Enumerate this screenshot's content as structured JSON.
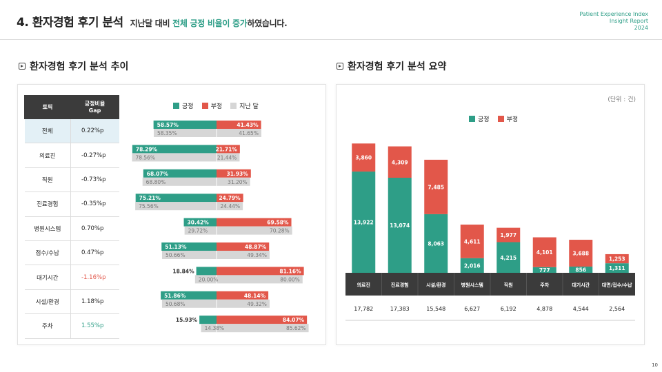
{
  "header": {
    "title": "4. 환자경험 후기 분석",
    "subtitle_pre": "지난달 대비",
    "subtitle_hl": "전체 긍정 비율이 증가",
    "subtitle_post": "하였습니다.",
    "brand_line1": "Patient Experience Index",
    "brand_line2": "Insight Report",
    "brand_line3": "2024"
  },
  "page_number": "10",
  "colors": {
    "positive": "#2e9e87",
    "negative": "#e2574a",
    "last_month": "#d6d6d6",
    "text": "#222222"
  },
  "left": {
    "section_title": "환자경험 후기 분석 추이",
    "table_header_topic": "토픽",
    "table_header_gap": "긍정비율 Gap",
    "legend": {
      "positive": "긍정",
      "negative": "부정",
      "last_month": "지난 달"
    }
  },
  "right": {
    "section_title": "환자경험 후기 분석 요약",
    "unit": "(단위 : 건)",
    "legend": {
      "positive": "긍정",
      "negative": "부정"
    }
  },
  "chart_data": [
    {
      "type": "bar",
      "orientation": "horizontal-diverging",
      "categories": [
        "전체",
        "의료진",
        "직원",
        "진료경험",
        "병원시스템",
        "접수/수납",
        "대기시간",
        "시설/환경",
        "주차"
      ],
      "gap": [
        "0.22%p",
        "-0.27%p",
        "-0.73%p",
        "-0.35%p",
        "0.70%p",
        "0.47%p",
        "-1.16%p",
        "1.18%p",
        "1.55%p"
      ],
      "series": [
        {
          "name": "긍정",
          "labels": [
            "58.57%",
            "78.29%",
            "68.07%",
            "75.21%",
            "30.42%",
            "51.13%",
            "18.84%",
            "51.86%",
            "15.93%"
          ],
          "values": [
            58.57,
            78.29,
            68.07,
            75.21,
            30.42,
            51.13,
            18.84,
            51.86,
            15.93
          ]
        },
        {
          "name": "부정",
          "labels": [
            "41.43%",
            "21.71%",
            "31.93%",
            "24.79%",
            "69.58%",
            "48.87%",
            "81.16%",
            "48.14%",
            "84.07%"
          ],
          "values": [
            41.43,
            21.71,
            31.93,
            24.79,
            69.58,
            48.87,
            81.16,
            48.14,
            84.07
          ]
        },
        {
          "name": "지난 달 긍정",
          "labels": [
            "58.35%",
            "78.56%",
            "68.80%",
            "75.56%",
            "29.72%",
            "50.66%",
            "20.00%",
            "50.68%",
            "14.38%"
          ],
          "values": [
            58.35,
            78.56,
            68.8,
            75.56,
            29.72,
            50.66,
            20.0,
            50.68,
            14.38
          ]
        },
        {
          "name": "지난 달 부정",
          "labels": [
            "41.65%",
            "21.44%",
            "31.20%",
            "24.44%",
            "70.28%",
            "49.34%",
            "80.00%",
            "49.32%",
            "85.62%"
          ],
          "values": [
            41.65,
            21.44,
            31.2,
            24.44,
            70.28,
            49.34,
            80.0,
            49.32,
            85.62
          ]
        }
      ]
    },
    {
      "type": "bar",
      "stacked": true,
      "categories": [
        "의료진",
        "진료경험",
        "시설/환경",
        "병원시스템",
        "직원",
        "주차",
        "대기시간",
        "대면/접수/수납"
      ],
      "series": [
        {
          "name": "긍정",
          "labels": [
            "13,922",
            "13,074",
            "8,063",
            "2,016",
            "4,215",
            "777",
            "856",
            "1,311"
          ],
          "values": [
            13922,
            13074,
            8063,
            2016,
            4215,
            777,
            856,
            1311
          ]
        },
        {
          "name": "부정",
          "labels": [
            "3,860",
            "4,309",
            "7,485",
            "4,611",
            "1,977",
            "4,101",
            "3,688",
            "1,253"
          ],
          "values": [
            3860,
            4309,
            7485,
            4611,
            1977,
            4101,
            3688,
            1253
          ]
        }
      ],
      "totals": [
        "17,782",
        "17,383",
        "15,548",
        "6,627",
        "6,192",
        "4,878",
        "4,544",
        "2,564"
      ]
    }
  ]
}
